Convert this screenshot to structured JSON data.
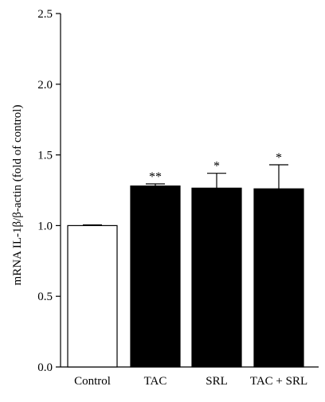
{
  "chart_data": {
    "type": "bar",
    "categories": [
      "Control",
      "TAC",
      "SRL",
      "TAC + SRL"
    ],
    "values": [
      1.0,
      1.28,
      1.265,
      1.26
    ],
    "errors": [
      0.005,
      0.015,
      0.105,
      0.17
    ],
    "significance": [
      "",
      "**",
      "*",
      "*"
    ],
    "bar_fills": [
      "#ffffff",
      "#000000",
      "#000000",
      "#000000"
    ],
    "ylabel": "mRNA IL-1β/β-actin (fold of control)",
    "ylim": [
      0,
      2.5
    ],
    "yticks": [
      "0.0",
      "0.5",
      "1.0",
      "1.5",
      "2.0",
      "2.5"
    ],
    "grid": false,
    "legend": "none"
  }
}
